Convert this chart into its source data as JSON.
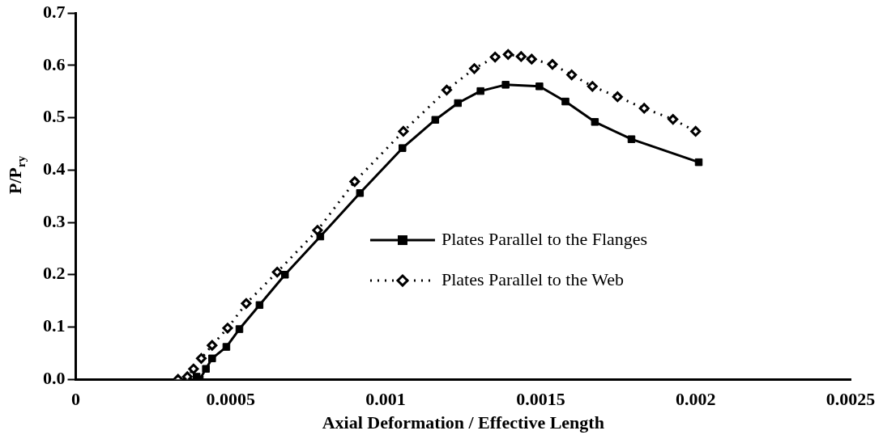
{
  "chart_data": {
    "type": "line",
    "xlabel": "Axial Deformation / Effective Length",
    "ylabel": "P/P$_{ry}$",
    "xlim": [
      0,
      0.0025
    ],
    "xticks": [
      0,
      0.0005,
      0.001,
      0.0015,
      0.002,
      0.0025
    ],
    "ylim": [
      0,
      0.7
    ],
    "yticks": [
      {
        "value": 0,
        "label": "0.0"
      },
      0.1,
      0.2,
      0.3,
      0.4,
      0.5,
      0.6,
      0.7
    ],
    "grid": false,
    "legend": "right",
    "series": [
      {
        "name": "Plates Parallel to the Flanges",
        "color": "#000000",
        "marker": "square",
        "line_style": "solid",
        "x": [
          0.00039,
          0.0004,
          0.00042,
          0.00044,
          0.000486,
          0.000528,
          0.000593,
          0.000675,
          0.000789,
          0.000917,
          0.001054,
          0.00116,
          0.001233,
          0.001306,
          0.001387,
          0.001496,
          0.00158,
          0.001675,
          0.001793,
          0.00201
        ],
        "values": [
          0.005,
          0,
          0.02,
          0.04,
          0.062,
          0.096,
          0.142,
          0.2,
          0.273,
          0.356,
          0.442,
          0.496,
          0.528,
          0.551,
          0.563,
          0.56,
          0.531,
          0.492,
          0.459,
          0.415
        ]
      },
      {
        "name": "Plates Parallel to the Web",
        "color": "#000000",
        "marker": "diamond",
        "line_style": "dotted",
        "x": [
          0.00033,
          0.00036,
          0.00038,
          0.000405,
          0.00044,
          0.00049,
          0.00055,
          0.00065,
          0.00078,
          0.0009,
          0.001057,
          0.001197,
          0.001286,
          0.001353,
          0.001395,
          0.001437,
          0.001471,
          0.001538,
          0.0016,
          0.001667,
          0.001748,
          0.001834,
          0.001927,
          0.002
        ],
        "values": [
          0,
          0.005,
          0.02,
          0.04,
          0.065,
          0.098,
          0.145,
          0.205,
          0.285,
          0.378,
          0.474,
          0.553,
          0.594,
          0.616,
          0.621,
          0.617,
          0.612,
          0.602,
          0.582,
          0.56,
          0.54,
          0.518,
          0.497,
          0.474
        ]
      }
    ]
  }
}
